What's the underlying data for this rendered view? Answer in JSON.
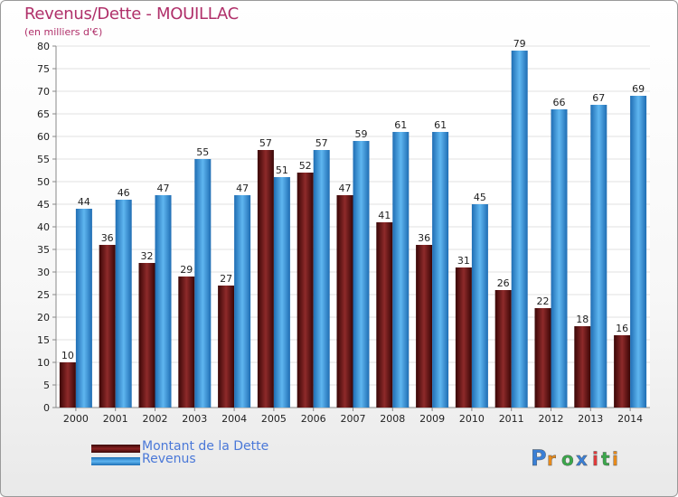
{
  "chart_data": {
    "type": "bar",
    "title": "Revenus/Dette - MOUILLAC",
    "subtitle": "(en milliers d'€)",
    "categories": [
      "2000",
      "2001",
      "2002",
      "2003",
      "2004",
      "2005",
      "2006",
      "2007",
      "2008",
      "2009",
      "2010",
      "2011",
      "2012",
      "2013",
      "2014"
    ],
    "series": [
      {
        "name": "Montant de la Dette",
        "color": "#7a1a1a",
        "values": [
          10,
          36,
          32,
          29,
          27,
          57,
          52,
          47,
          41,
          36,
          31,
          26,
          22,
          18,
          16
        ]
      },
      {
        "name": "Revenus",
        "color": "#3a97dc",
        "values": [
          44,
          46,
          47,
          55,
          47,
          51,
          57,
          59,
          61,
          61,
          45,
          79,
          66,
          67,
          69
        ]
      }
    ],
    "yticks": [
      0,
      5,
      10,
      15,
      20,
      25,
      30,
      35,
      40,
      45,
      50,
      55,
      60,
      65,
      70,
      75,
      80
    ],
    "ylim": [
      0,
      80
    ],
    "grid": true,
    "legend_position": "bottom-left"
  },
  "logo": {
    "letters": [
      "P",
      "r",
      "o",
      "x",
      "i",
      "t",
      "i"
    ],
    "colors": [
      "#3a7fd6",
      "#e88a1a",
      "#3aa84a",
      "#3a7fd6",
      "#e03a3a",
      "#3aa84a",
      "#e88a1a"
    ]
  }
}
